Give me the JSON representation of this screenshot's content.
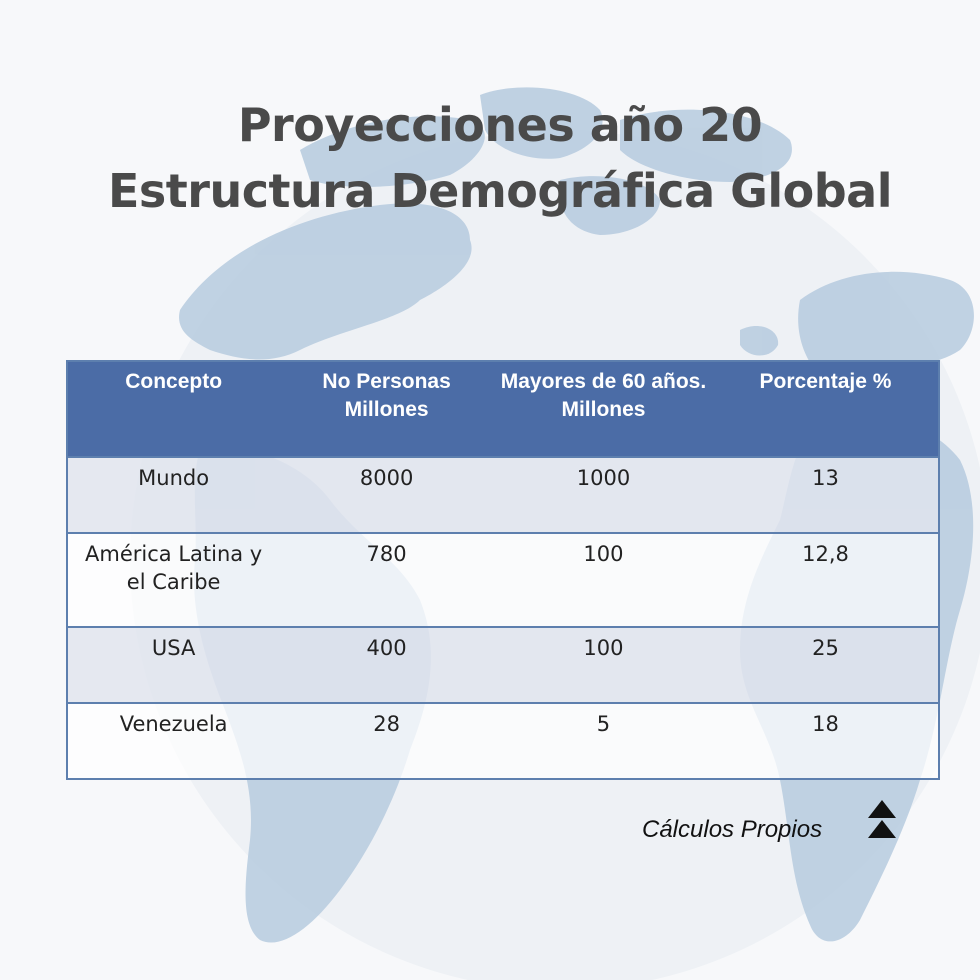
{
  "title": {
    "line1": "Proyecciones año 20",
    "line2": "Estructura Demográfica Global"
  },
  "table": {
    "headers": [
      "Concepto",
      "No Personas Millones",
      "Mayores de 60 años. Millones",
      "Porcentaje %"
    ],
    "rows": [
      [
        "Mundo",
        "8000",
        "1000",
        "13"
      ],
      [
        "América Latina y el Caribe",
        "780",
        "100",
        "12,8"
      ],
      [
        "USA",
        "400",
        "100",
        "25"
      ],
      [
        "Venezuela",
        "28",
        "5",
        "18"
      ]
    ]
  },
  "source": "Cálculos Propios",
  "icons": {
    "background": "world-map-icon",
    "scroll": "double-up-arrow-icon"
  },
  "colors": {
    "header_bg": "#4b6ca6",
    "title_text": "#4a4a4a",
    "map": "#b9cde0"
  }
}
